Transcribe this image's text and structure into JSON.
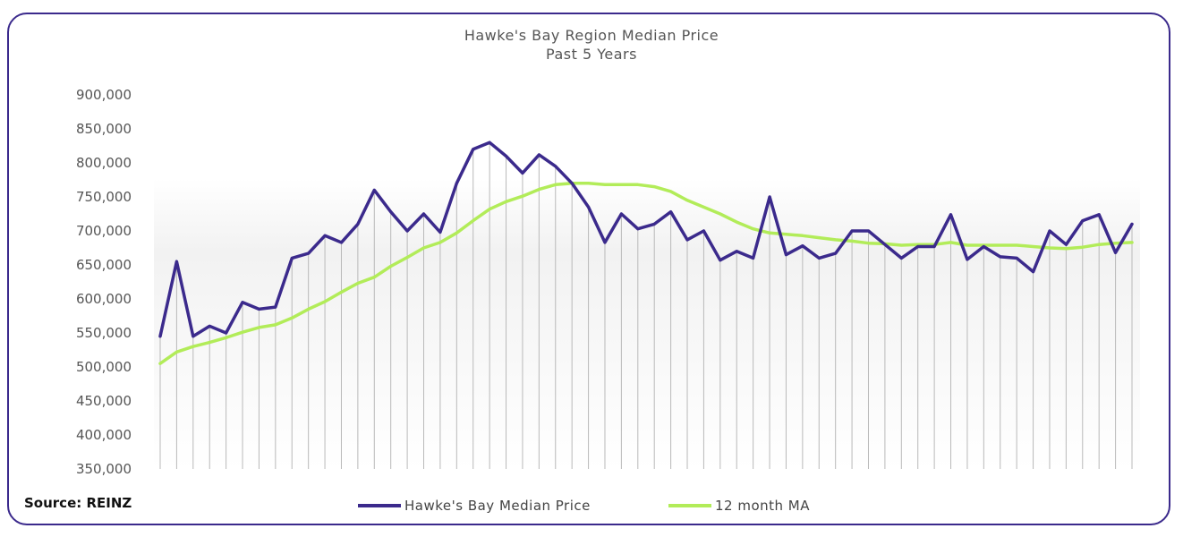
{
  "chart_data": {
    "type": "line",
    "title": "Hawke's Bay Region Median Price",
    "subtitle": "Past 5 Years",
    "ylim": [
      350000,
      900000
    ],
    "yticks": [
      900000,
      850000,
      800000,
      750000,
      700000,
      650000,
      600000,
      550000,
      500000,
      450000,
      400000,
      350000
    ],
    "ytick_labels": [
      "900,000",
      "850,000",
      "800,000",
      "750,000",
      "700,000",
      "650,000",
      "600,000",
      "550,000",
      "500,000",
      "450,000",
      "400,000",
      "350,000"
    ],
    "grid": "vertical drop lines per month",
    "legend_position": "bottom",
    "source": "Source: REINZ",
    "series": [
      {
        "name": "Hawke's Bay Median Price",
        "color": "#3b2a8c",
        "values": [
          545000,
          655000,
          545000,
          560000,
          550000,
          595000,
          585000,
          588000,
          660000,
          667000,
          693000,
          683000,
          710000,
          760000,
          728000,
          700000,
          725000,
          698000,
          770000,
          820000,
          830000,
          810000,
          785000,
          812000,
          795000,
          770000,
          735000,
          683000,
          725000,
          703000,
          710000,
          728000,
          687000,
          700000,
          657000,
          670000,
          660000,
          750000,
          665000,
          678000,
          660000,
          667000,
          700000,
          700000,
          680000,
          660000,
          677000,
          677000,
          724000,
          658000,
          677000,
          662000,
          660000,
          640000,
          700000,
          680000,
          715000,
          724000,
          668000,
          710000
        ]
      },
      {
        "name": "12 month MA",
        "color": "#b2ec59",
        "values": [
          505000,
          522000,
          530000,
          536000,
          543000,
          551000,
          558000,
          562000,
          572000,
          585000,
          596000,
          610000,
          623000,
          632000,
          648000,
          661000,
          675000,
          683000,
          697000,
          715000,
          732000,
          743000,
          751000,
          761000,
          768000,
          770000,
          770000,
          768000,
          768000,
          768000,
          765000,
          758000,
          745000,
          735000,
          725000,
          713000,
          703000,
          697000,
          695000,
          693000,
          690000,
          687000,
          685000,
          682000,
          681000,
          679000,
          680000,
          680000,
          683000,
          679000,
          679000,
          679000,
          679000,
          677000,
          675000,
          674000,
          676000,
          680000,
          682000,
          683000
        ]
      }
    ]
  }
}
